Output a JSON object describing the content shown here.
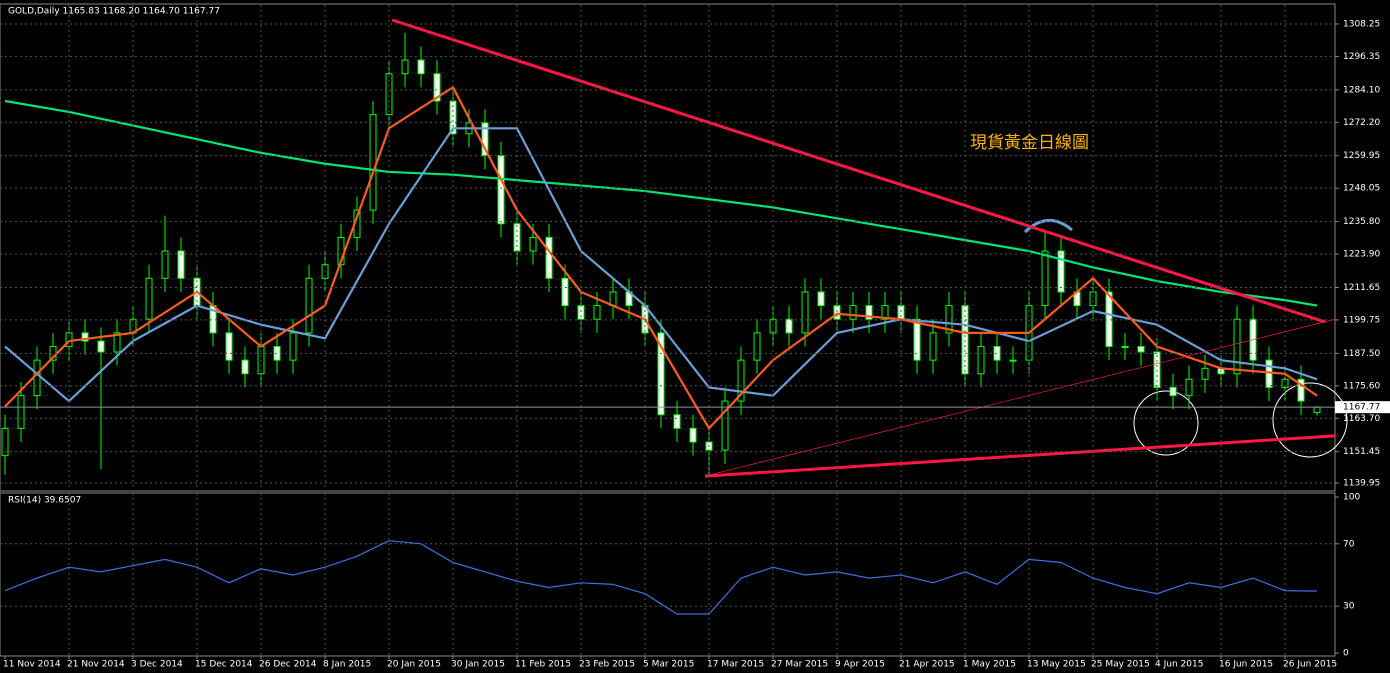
{
  "chart_data": {
    "type": "candlestick",
    "title": "GOLD,Daily  1165.83 1168.20 1164.70 1167.77",
    "annotation": "現貨黃金日線圖",
    "categories": [
      "11 Nov 2014",
      null,
      null,
      null,
      "21 Nov 2014",
      null,
      null,
      null,
      "3 Dec 2014",
      null,
      null,
      null,
      "15 Dec 2014",
      null,
      null,
      null,
      "26 Dec 2014",
      null,
      null,
      null,
      "8 Jan 2015",
      null,
      null,
      null,
      "20 Jan 2015",
      null,
      null,
      null,
      "30 Jan 2015",
      null,
      null,
      null,
      "11 Feb 2015",
      null,
      null,
      null,
      "23 Feb 2015",
      null,
      null,
      null,
      "5 Mar 2015",
      null,
      null,
      null,
      "17 Mar 2015",
      null,
      null,
      null,
      "27 Mar 2015",
      null,
      null,
      null,
      "9 Apr 2015",
      null,
      null,
      null,
      "21 Apr 2015",
      null,
      null,
      null,
      "1 May 2015",
      null,
      null,
      null,
      "13 May 2015",
      null,
      null,
      null,
      "25 May 2015",
      null,
      null,
      null,
      "4 Jun 2015",
      null,
      null,
      null,
      "16 Jun 2015",
      null,
      null,
      null,
      "26 Jun 2015",
      null,
      null
    ],
    "open": [
      1150,
      1160,
      1172,
      1185,
      1190,
      1195,
      1192,
      1188,
      1195,
      1200,
      1215,
      1225,
      1215,
      1205,
      1195,
      1185,
      1180,
      1190,
      1185,
      1195,
      1215,
      1220,
      1230,
      1240,
      1275,
      1290,
      1295,
      1290,
      1280,
      1268,
      1272,
      1260,
      1235,
      1225,
      1230,
      1215,
      1205,
      1200,
      1205,
      1210,
      1205,
      1195,
      1165,
      1160,
      1155,
      1152,
      1170,
      1185,
      1195,
      1200,
      1195,
      1210,
      1205,
      1200,
      1205,
      1200,
      1205,
      1200,
      1185,
      1195,
      1205,
      1180,
      1190,
      1185,
      1185,
      1205,
      1225,
      1210,
      1205,
      1210,
      1190,
      1190,
      1188,
      1175,
      1172,
      1178,
      1182,
      1180,
      1200,
      1185,
      1175,
      1178,
      1165.83
    ],
    "high": [
      1165,
      1177,
      1190,
      1195,
      1200,
      1200,
      1197,
      1200,
      1205,
      1220,
      1238,
      1230,
      1220,
      1210,
      1200,
      1190,
      1195,
      1195,
      1200,
      1220,
      1225,
      1235,
      1245,
      1280,
      1295,
      1305,
      1300,
      1295,
      1285,
      1277,
      1277,
      1265,
      1240,
      1235,
      1235,
      1220,
      1210,
      1210,
      1215,
      1215,
      1210,
      1200,
      1170,
      1165,
      1160,
      1175,
      1190,
      1200,
      1205,
      1205,
      1215,
      1215,
      1210,
      1210,
      1210,
      1210,
      1210,
      1205,
      1200,
      1210,
      1210,
      1195,
      1195,
      1190,
      1210,
      1232,
      1230,
      1215,
      1215,
      1215,
      1195,
      1195,
      1193,
      1180,
      1183,
      1187,
      1187,
      1205,
      1205,
      1190,
      1183,
      1183,
      1168.2
    ],
    "low": [
      1143,
      1155,
      1167,
      1180,
      1185,
      1187,
      1145,
      1183,
      1190,
      1195,
      1210,
      1210,
      1200,
      1190,
      1180,
      1175,
      1175,
      1180,
      1180,
      1190,
      1210,
      1215,
      1225,
      1235,
      1270,
      1285,
      1285,
      1275,
      1263,
      1263,
      1255,
      1230,
      1220,
      1220,
      1210,
      1200,
      1195,
      1195,
      1200,
      1200,
      1190,
      1160,
      1155,
      1150,
      1142,
      1147,
      1165,
      1180,
      1190,
      1190,
      1190,
      1200,
      1195,
      1195,
      1195,
      1195,
      1195,
      1180,
      1180,
      1190,
      1175,
      1175,
      1180,
      1180,
      1180,
      1200,
      1205,
      1200,
      1200,
      1185,
      1185,
      1183,
      1170,
      1167,
      1167,
      1173,
      1175,
      1175,
      1180,
      1170,
      1170,
      1165,
      1164.7
    ],
    "close": [
      1160,
      1172,
      1185,
      1190,
      1195,
      1192,
      1188,
      1195,
      1200,
      1215,
      1225,
      1215,
      1205,
      1195,
      1185,
      1180,
      1190,
      1185,
      1195,
      1215,
      1220,
      1230,
      1240,
      1275,
      1290,
      1295,
      1290,
      1280,
      1268,
      1272,
      1260,
      1235,
      1225,
      1230,
      1215,
      1205,
      1200,
      1205,
      1210,
      1205,
      1195,
      1165,
      1160,
      1155,
      1152,
      1170,
      1185,
      1195,
      1200,
      1195,
      1210,
      1205,
      1200,
      1205,
      1200,
      1205,
      1200,
      1185,
      1195,
      1205,
      1180,
      1190,
      1185,
      1185,
      1205,
      1225,
      1210,
      1205,
      1210,
      1190,
      1190,
      1188,
      1175,
      1172,
      1178,
      1182,
      1180,
      1200,
      1185,
      1175,
      1178,
      1170,
      1167.77
    ],
    "up_color": "#000000",
    "down_color": "#ffffff",
    "wick_color": "#00ff00",
    "ylim": [
      1137.4,
      1315.2
    ],
    "yticks": [
      1139.95,
      1151.45,
      {
        "value": 1163.7,
        "label": "1163.70"
      },
      {
        "value": 1175.6,
        "label": "1175.60"
      },
      {
        "value": 1187.5,
        "label": "1187.50"
      },
      1199.75,
      1211.65,
      {
        "value": 1223.9,
        "label": "1223.90"
      },
      {
        "value": 1235.8,
        "label": "1235.80"
      },
      1248.05,
      1259.95,
      {
        "value": 1272.2,
        "label": "1272.20"
      },
      {
        "value": 1284.1,
        "label": "1284.10"
      },
      1296.35,
      1308.25
    ],
    "grid": true,
    "lines": [
      {
        "color": "#00e676",
        "x": [
          0,
          4,
          8,
          12,
          16,
          20,
          24,
          28,
          32,
          36,
          40,
          44,
          48,
          52,
          56,
          60,
          64,
          68,
          72,
          76,
          80,
          82
        ],
        "values": [
          1280,
          1276,
          1271,
          1266,
          1261,
          1257,
          1254,
          1253,
          1251,
          1249,
          1247,
          1244,
          1241,
          1237,
          1233,
          1229,
          1225,
          1219,
          1214,
          1210,
          1207,
          1205
        ]
      },
      {
        "color": "#6a9fd8",
        "x": [
          0,
          4,
          8,
          12,
          16,
          20,
          24,
          28,
          32,
          36,
          40,
          44,
          48,
          52,
          56,
          60,
          64,
          68,
          72,
          76,
          80,
          82
        ],
        "values": [
          1190,
          1170,
          1192,
          1205,
          1198,
          1193,
          1235,
          1270,
          1270,
          1225,
          1205,
          1175,
          1172,
          1195,
          1200,
          1198,
          1192,
          1203,
          1198,
          1185,
          1182,
          1178
        ]
      },
      {
        "color": "#ff5a1f",
        "x": [
          0,
          4,
          8,
          12,
          16,
          20,
          24,
          28,
          32,
          36,
          40,
          44,
          48,
          52,
          56,
          60,
          64,
          68,
          72,
          76,
          80,
          82
        ],
        "values": [
          1168,
          1192,
          1195,
          1210,
          1190,
          1205,
          1270,
          1285,
          1240,
          1210,
          1200,
          1160,
          1185,
          1202,
          1200,
          1195,
          1195,
          1215,
          1190,
          1182,
          1180,
          1172
        ]
      }
    ],
    "trendlines": [
      {
        "color": "#ff1744",
        "width": 3,
        "x": [
          24.2,
          82.5
        ],
        "values": [
          1309.7,
          1199
        ]
      },
      {
        "color": "#ff1744",
        "width": 3,
        "x": [
          43.75,
          83.75
        ],
        "values": [
          1142.5,
          1157.5
        ]
      },
      {
        "color": "#ff1744",
        "width": 0.7,
        "x": [
          43.75,
          83.75
        ],
        "values": [
          1142.5,
          1200.9
        ]
      }
    ],
    "rsi": {
      "title": "RSI(14) 39.6507",
      "color": "#3d6fe0",
      "ylim": [
        0,
        100
      ],
      "yticks": [
        0,
        30,
        70,
        100
      ],
      "x": [
        0,
        2,
        4,
        6,
        8,
        10,
        12,
        14,
        16,
        18,
        20,
        22,
        24,
        26,
        28,
        30,
        32,
        34,
        36,
        38,
        40,
        42,
        44,
        46,
        48,
        50,
        52,
        54,
        56,
        58,
        60,
        62,
        64,
        66,
        68,
        70,
        72,
        74,
        76,
        78,
        80,
        82
      ],
      "values": [
        40,
        48,
        55,
        52,
        56,
        60,
        55,
        45,
        54,
        50,
        55,
        62,
        72,
        70,
        58,
        52,
        46,
        42,
        45,
        44,
        38,
        25,
        25,
        48,
        55,
        50,
        52,
        48,
        50,
        45,
        52,
        44,
        60,
        58,
        48,
        42,
        38,
        45,
        42,
        48,
        40,
        39.65
      ]
    }
  }
}
